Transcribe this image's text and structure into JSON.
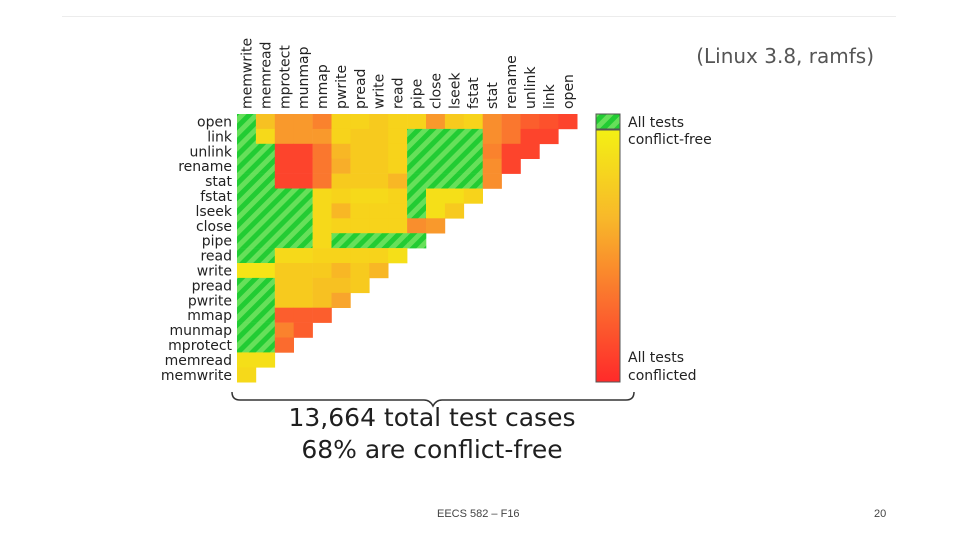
{
  "slide": {
    "subtitle": "(Linux 3.8, ramfs)",
    "summary_line1": "13,664 total test cases",
    "summary_line2": "68% are conflict-free",
    "footer": "EECS 582 – F16",
    "page_number": "20"
  },
  "colors": {
    "conflict_free": "#22cc33",
    "conflict_free_stripe": "#66e05a",
    "scale": [
      "#ff2a2a",
      "#fb6b2e",
      "#f8a52c",
      "#f7d31b",
      "#f3f014"
    ]
  },
  "chart_data": {
    "type": "heatmap",
    "title": "",
    "operations": [
      "open",
      "link",
      "unlink",
      "rename",
      "stat",
      "fstat",
      "lseek",
      "close",
      "pipe",
      "read",
      "write",
      "pread",
      "pwrite",
      "mmap",
      "munmap",
      "mprotect",
      "memread",
      "memwrite"
    ],
    "row_labels": [
      "open",
      "link",
      "unlink",
      "rename",
      "stat",
      "fstat",
      "lseek",
      "close",
      "pipe",
      "read",
      "write",
      "pread",
      "pwrite",
      "mmap",
      "munmap",
      "mprotect",
      "memread",
      "memwrite"
    ],
    "column_labels": [
      "memwrite",
      "memread",
      "mprotect",
      "munmap",
      "mmap",
      "pwrite",
      "pread",
      "write",
      "read",
      "pipe",
      "close",
      "lseek",
      "fstat",
      "stat",
      "rename",
      "unlink",
      "link",
      "open"
    ],
    "value_meaning": "fraction of tests conflict-free (1 = all conflict-free, 0 = all conflicted)",
    "values": [
      [
        1,
        0.65,
        0.45,
        0.45,
        0.35,
        0.75,
        0.75,
        0.7,
        0.75,
        0.75,
        0.45,
        0.7,
        0.75,
        0.4,
        0.3,
        0.2,
        0.15,
        0.1
      ],
      [
        1,
        0.8,
        0.45,
        0.45,
        0.45,
        0.75,
        0.7,
        0.7,
        0.75,
        1,
        1,
        1,
        1,
        0.4,
        0.3,
        0.1,
        0.1
      ],
      [
        1,
        1,
        0.1,
        0.1,
        0.3,
        0.6,
        0.7,
        0.7,
        0.75,
        1,
        1,
        1,
        1,
        0.35,
        0.1,
        0.1
      ],
      [
        1,
        1,
        0.1,
        0.1,
        0.3,
        0.55,
        0.7,
        0.7,
        0.75,
        1,
        1,
        1,
        1,
        0.4,
        0.1
      ],
      [
        1,
        1,
        0.1,
        0.1,
        0.3,
        0.7,
        0.7,
        0.7,
        0.6,
        1,
        1,
        1,
        1,
        0.4
      ],
      [
        1,
        1,
        1,
        1,
        0.8,
        0.75,
        0.8,
        0.8,
        0.75,
        1,
        0.85,
        0.85,
        0.75
      ],
      [
        1,
        1,
        1,
        1,
        0.8,
        0.6,
        0.75,
        0.75,
        0.75,
        1,
        0.85,
        0.7
      ],
      [
        1,
        1,
        1,
        1,
        0.8,
        0.75,
        0.75,
        0.75,
        0.75,
        0.4,
        0.45
      ],
      [
        1,
        1,
        1,
        1,
        0.8,
        1,
        1,
        1,
        1,
        1
      ],
      [
        1,
        1,
        0.8,
        0.8,
        0.75,
        0.75,
        0.75,
        0.75,
        0.85
      ],
      [
        0.9,
        0.9,
        0.7,
        0.7,
        0.7,
        0.6,
        0.7,
        0.6
      ],
      [
        1,
        1,
        0.7,
        0.7,
        0.65,
        0.65,
        0.7
      ],
      [
        1,
        1,
        0.7,
        0.7,
        0.65,
        0.5
      ],
      [
        1,
        1,
        0.2,
        0.2,
        0.2
      ],
      [
        1,
        1,
        0.35,
        0.2
      ],
      [
        1,
        1,
        0.25
      ],
      [
        0.85,
        0.85
      ],
      [
        0.8
      ]
    ],
    "legend": {
      "top_label": "All tests conflict-free",
      "bottom_label": "All tests conflicted",
      "top_line1": "All tests",
      "top_line2": "conflict-free",
      "bottom_line1": "All tests",
      "bottom_line2": "conflicted"
    },
    "grid": false
  }
}
